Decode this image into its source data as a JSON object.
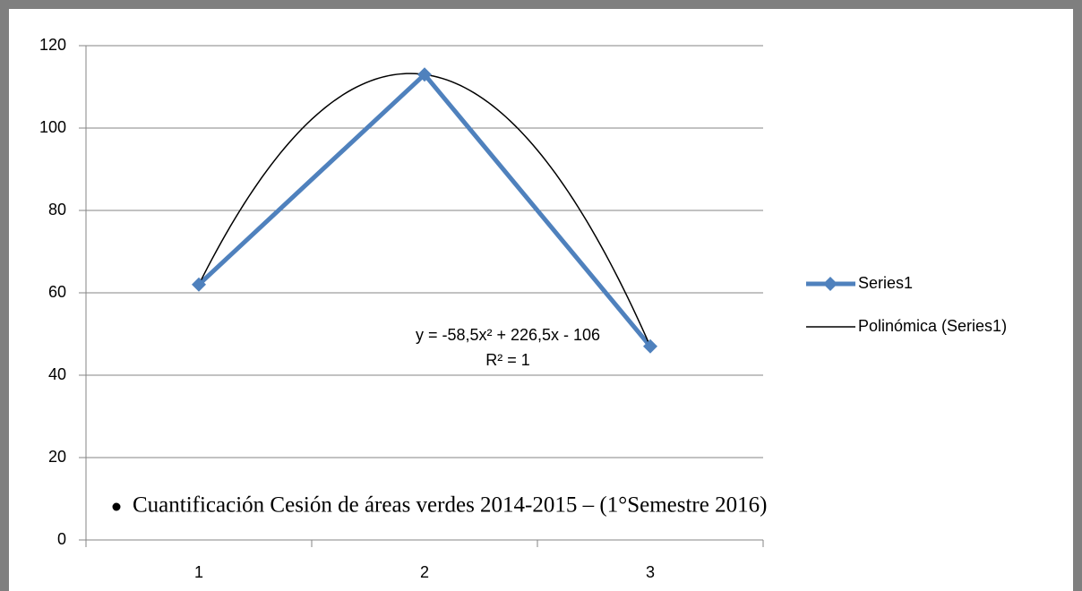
{
  "chart_data": {
    "type": "line",
    "x": [
      1,
      2,
      3
    ],
    "xlim": [
      0.5,
      3.5
    ],
    "xticks": [
      1,
      2,
      3
    ],
    "ylim": [
      0,
      120
    ],
    "yticks": [
      0,
      20,
      40,
      60,
      80,
      100,
      120
    ],
    "grid": true,
    "legend": "right",
    "series": [
      {
        "name": "Series1",
        "color": "#4f81bd",
        "values": [
          62,
          113,
          47
        ]
      }
    ],
    "trendline": {
      "name": "Polinómica (Series1)",
      "color": "#000000",
      "order": 2
    },
    "annotations": [
      "y = -58,5x² + 226,5x - 106",
      "R² = 1"
    ]
  },
  "document": {
    "bullet_text": "Cuantificación Cesión de áreas verdes 2014-2015 – (1°Semestre 2016)"
  }
}
